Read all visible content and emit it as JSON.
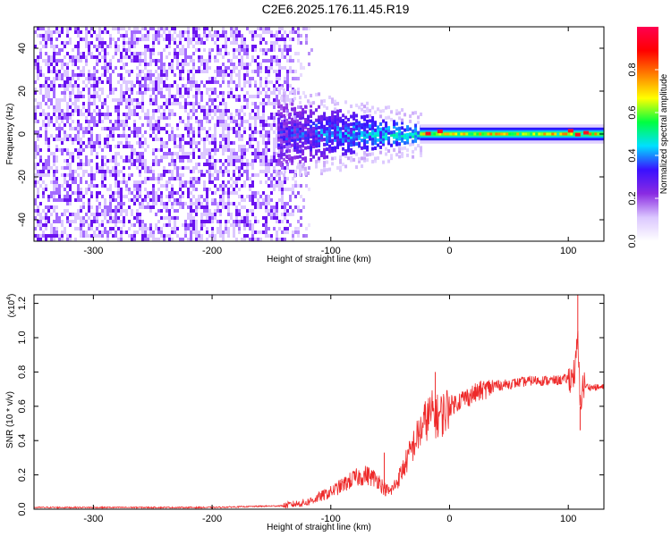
{
  "title": "C2E6.2025.176.11.45.R19",
  "chart_data": [
    {
      "type": "heatmap",
      "xlabel": "Height of straight line (km)",
      "ylabel": "Frequency (Hz)",
      "xlim": [
        -350,
        130
      ],
      "ylim": [
        -50,
        50
      ],
      "xticks": [
        -300,
        -200,
        -100,
        0,
        100
      ],
      "yticks": [
        -40,
        -20,
        0,
        20,
        40
      ],
      "colorbar": {
        "label": "Normalized spectral amplitude",
        "range": [
          0.0,
          1.0
        ],
        "ticks": [
          0.0,
          0.2,
          0.4,
          0.6,
          0.8
        ],
        "colors": [
          "#ffffff",
          "#dbc7ff",
          "#8a2be2",
          "#3a10ff",
          "#00e0ff",
          "#00ff40",
          "#ffff00",
          "#ff8000",
          "#ff0000",
          "#ff0050"
        ]
      },
      "regions": [
        {
          "x_range": [
            -350,
            -130
          ],
          "freq_range": [
            -50,
            50
          ],
          "amplitude": [
            0.0,
            0.15
          ]
        },
        {
          "x_range": [
            -145,
            -25
          ],
          "freq_range": [
            -12,
            15
          ],
          "amplitude": [
            0.1,
            0.45
          ]
        },
        {
          "x_range": [
            -25,
            130
          ],
          "freq_range": [
            -4,
            4
          ],
          "amplitude": [
            0.3,
            1.0
          ]
        }
      ]
    },
    {
      "type": "line",
      "xlabel": "Height of straight line (km)",
      "ylabel": "SNR (10 * v/v)",
      "y_exponent": "(x10",
      "y_exponent_power": "4",
      "y_exponent_close": ")",
      "xlim": [
        -350,
        130
      ],
      "ylim": [
        0.0,
        1.25
      ],
      "xticks": [
        -300,
        -200,
        -100,
        0,
        100
      ],
      "yticks": [
        "0.0",
        "0.2",
        "0.4",
        "0.6",
        "0.8",
        "1.0",
        "1.2"
      ],
      "series": [
        {
          "color": "#ee2a2a",
          "x": [
            -350,
            -200,
            -140,
            -120,
            -110,
            -100,
            -90,
            -80,
            -70,
            -60,
            -55,
            -50,
            -45,
            -40,
            -35,
            -30,
            -25,
            -20,
            -15,
            -10,
            -5,
            0,
            10,
            20,
            30,
            40,
            50,
            60,
            70,
            80,
            90,
            100,
            104,
            106,
            108,
            110,
            112,
            120,
            130
          ],
          "y": [
            0.01,
            0.01,
            0.02,
            0.04,
            0.07,
            0.1,
            0.14,
            0.18,
            0.2,
            0.17,
            0.12,
            0.1,
            0.15,
            0.22,
            0.3,
            0.38,
            0.45,
            0.52,
            0.56,
            0.54,
            0.56,
            0.6,
            0.64,
            0.67,
            0.7,
            0.72,
            0.73,
            0.74,
            0.75,
            0.75,
            0.75,
            0.76,
            0.78,
            0.82,
            1.0,
            0.6,
            0.72,
            0.71,
            0.71
          ]
        }
      ],
      "peaks": [
        {
          "x": -55,
          "y": 0.33
        },
        {
          "x": -12,
          "y": 0.8
        },
        {
          "x": 108,
          "y": 1.25
        },
        {
          "x": 110,
          "y": 0.46
        }
      ]
    }
  ]
}
